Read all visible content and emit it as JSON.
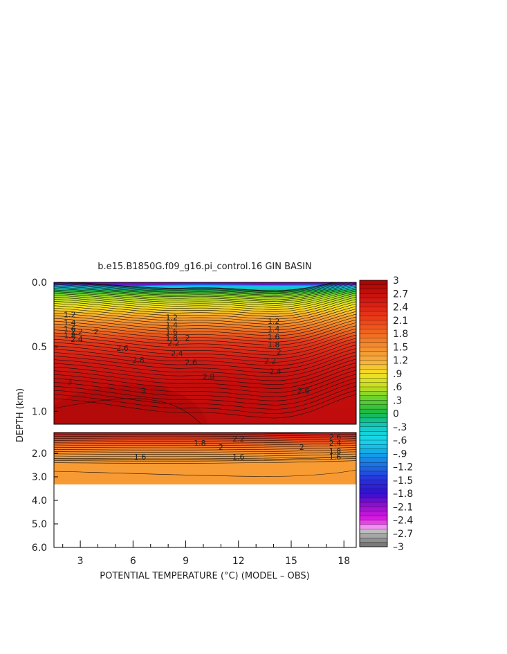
{
  "chart_data": {
    "type": "heatmap",
    "title": "b.e15.B1850G.f09_g16.pi_control.16 GIN BASIN",
    "xlabel": "POTENTIAL TEMPERATURE (°C) (MODEL – OBS)",
    "ylabel": "DEPTH (km)",
    "xlim": [
      1.5,
      18.7
    ],
    "x_ticks": [
      "3",
      "6",
      "9",
      "12",
      "15",
      "18"
    ],
    "upper_panel": {
      "ylim": [
        0.0,
        1.1
      ],
      "y_ticks": [
        "0.0",
        "0.5",
        "1.0"
      ]
    },
    "lower_panel": {
      "ylim": [
        1.5,
        6.0
      ],
      "y_ticks": [
        "2.0",
        "3.0",
        "4.0",
        "5.0",
        "6.0"
      ]
    },
    "colorbar": {
      "range": [
        -3,
        3
      ],
      "labels": [
        "3",
        "2.7",
        "2.4",
        "2.1",
        "1.8",
        "1.5",
        "1.2",
        ".9",
        ".6",
        ".3",
        "0",
        "–.3",
        "–.6",
        "–.9",
        "–1.2",
        "–1.5",
        "–1.8",
        "–2.1",
        "–2.4",
        "–2.7",
        "–3"
      ]
    },
    "contour_labels_upper": [
      {
        "x": 2.4,
        "y": 0.25,
        "text": "1.2"
      },
      {
        "x": 2.4,
        "y": 0.31,
        "text": "1.4"
      },
      {
        "x": 2.4,
        "y": 0.36,
        "text": "1.6"
      },
      {
        "x": 2.4,
        "y": 0.41,
        "text": "1.8"
      },
      {
        "x": 3.9,
        "y": 0.38,
        "text": "2"
      },
      {
        "x": 2.8,
        "y": 0.38,
        "text": "2.2"
      },
      {
        "x": 2.8,
        "y": 0.44,
        "text": "2.4"
      },
      {
        "x": 5.4,
        "y": 0.51,
        "text": "2.6"
      },
      {
        "x": 6.3,
        "y": 0.6,
        "text": "2.8"
      },
      {
        "x": 2.4,
        "y": 0.77,
        "text": "3"
      },
      {
        "x": 6.6,
        "y": 0.84,
        "text": "3"
      },
      {
        "x": 8.2,
        "y": 0.27,
        "text": "1.2"
      },
      {
        "x": 8.2,
        "y": 0.33,
        "text": "1.4"
      },
      {
        "x": 8.2,
        "y": 0.38,
        "text": "1.6"
      },
      {
        "x": 8.2,
        "y": 0.43,
        "text": "1.8"
      },
      {
        "x": 9.1,
        "y": 0.43,
        "text": "2"
      },
      {
        "x": 8.3,
        "y": 0.47,
        "text": "2.2"
      },
      {
        "x": 8.5,
        "y": 0.55,
        "text": "2.4"
      },
      {
        "x": 9.3,
        "y": 0.62,
        "text": "2.6"
      },
      {
        "x": 10.3,
        "y": 0.73,
        "text": "2.8"
      },
      {
        "x": 14.0,
        "y": 0.3,
        "text": "1.2"
      },
      {
        "x": 14.0,
        "y": 0.36,
        "text": "1.4"
      },
      {
        "x": 14.0,
        "y": 0.42,
        "text": "1.6"
      },
      {
        "x": 14.0,
        "y": 0.48,
        "text": "1.8"
      },
      {
        "x": 14.3,
        "y": 0.54,
        "text": "2"
      },
      {
        "x": 13.8,
        "y": 0.61,
        "text": "2.2"
      },
      {
        "x": 14.1,
        "y": 0.69,
        "text": "2.4"
      },
      {
        "x": 15.7,
        "y": 0.84,
        "text": "2.6"
      }
    ],
    "contour_labels_lower": [
      {
        "x": 9.8,
        "y": 1.75,
        "text": "1.8"
      },
      {
        "x": 6.4,
        "y": 2.15,
        "text": "1.6"
      },
      {
        "x": 12.0,
        "y": 1.65,
        "text": "2.2"
      },
      {
        "x": 11.0,
        "y": 1.85,
        "text": "2"
      },
      {
        "x": 12.0,
        "y": 2.15,
        "text": "1.6"
      },
      {
        "x": 17.5,
        "y": 1.6,
        "text": "2.6"
      },
      {
        "x": 17.5,
        "y": 1.75,
        "text": "2.4"
      },
      {
        "x": 15.6,
        "y": 1.85,
        "text": "2"
      },
      {
        "x": 17.5,
        "y": 1.95,
        "text": "1.8"
      },
      {
        "x": 17.5,
        "y": 2.15,
        "text": "1.6"
      }
    ]
  }
}
